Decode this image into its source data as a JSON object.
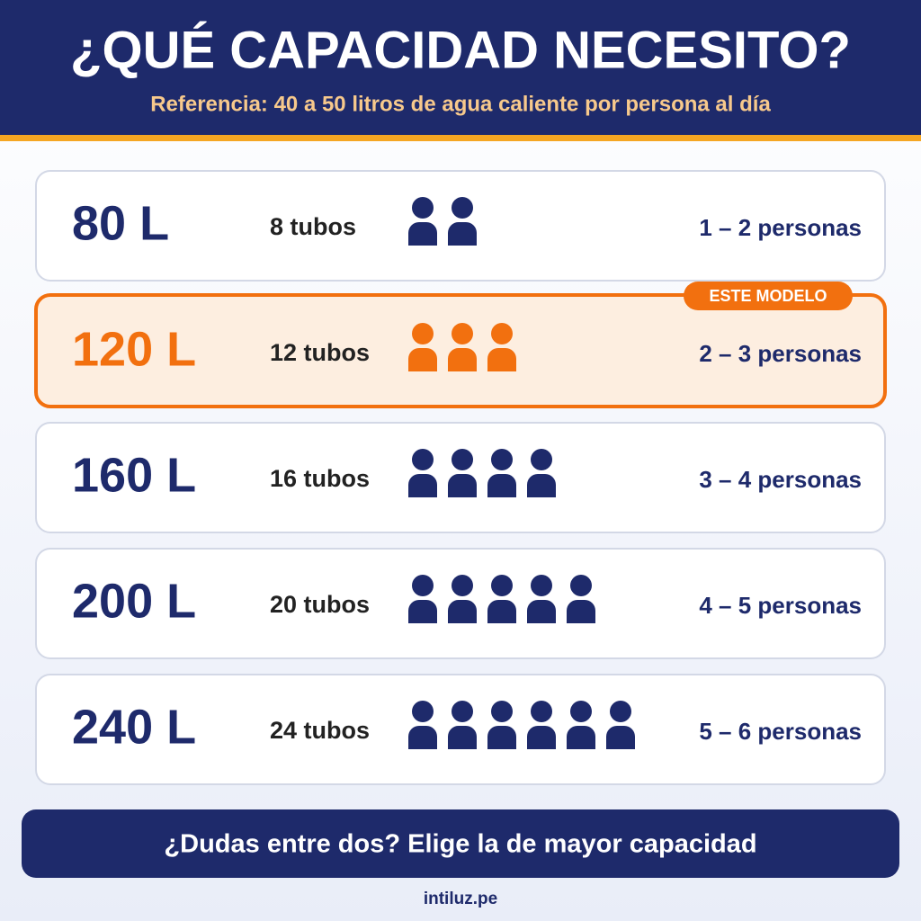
{
  "header": {
    "title": "¿QUÉ CAPACIDAD NECESITO?",
    "subtitle": "Referencia: 40 a 50 litros de agua caliente por persona al día"
  },
  "options": [
    {
      "capacity": "80 L",
      "tubes": "8 tubos",
      "people_icons": 2,
      "people": "1 – 2 personas"
    },
    {
      "capacity": "120 L",
      "tubes": "12 tubos",
      "people_icons": 3,
      "people": "2 – 3 personas",
      "badge": "ESTE MODELO"
    },
    {
      "capacity": "160 L",
      "tubes": "16 tubos",
      "people_icons": 4,
      "people": "3 – 4 personas"
    },
    {
      "capacity": "200 L",
      "tubes": "20 tubos",
      "people_icons": 5,
      "people": "4 – 5 personas"
    },
    {
      "capacity": "240 L",
      "tubes": "24 tubos",
      "people_icons": 6,
      "people": "5 – 6 personas"
    }
  ],
  "footer": {
    "note": "¿Dudas entre dos? Elige la de mayor capacidad",
    "site": "intiluz.pe"
  }
}
